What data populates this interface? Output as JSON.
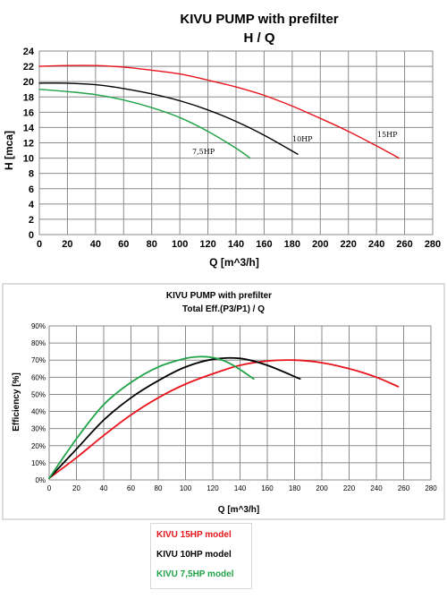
{
  "chart_data": [
    {
      "type": "line",
      "title": "KIVU PUMP with prefilter",
      "subtitle": "H  /  Q",
      "xlabel": "Q [m^3/h]",
      "ylabel": "H [mca]",
      "xlim": [
        0,
        280
      ],
      "ylim": [
        0,
        24
      ],
      "x_ticks": [
        "0",
        "20",
        "40",
        "60",
        "80",
        "100",
        "120",
        "140",
        "160",
        "180",
        "200",
        "220",
        "240",
        "260",
        "280"
      ],
      "y_ticks": [
        "0",
        "2",
        "4",
        "6",
        "8",
        "10",
        "12",
        "14",
        "16",
        "18",
        "20",
        "22",
        "24"
      ],
      "grid": true,
      "series": [
        {
          "name": "15HP",
          "color": "#e8141b",
          "x": [
            0,
            20,
            40,
            60,
            80,
            100,
            120,
            140,
            160,
            180,
            200,
            220,
            240,
            256
          ],
          "y": [
            22.0,
            22.1,
            22.1,
            21.9,
            21.5,
            21.0,
            20.2,
            19.3,
            18.2,
            16.8,
            15.2,
            13.5,
            11.6,
            10.0
          ]
        },
        {
          "name": "10HP",
          "color": "#000000",
          "x": [
            0,
            20,
            40,
            60,
            80,
            100,
            120,
            140,
            160,
            184
          ],
          "y": [
            19.8,
            19.8,
            19.6,
            19.1,
            18.4,
            17.5,
            16.3,
            14.8,
            13.0,
            10.5
          ]
        },
        {
          "name": "7,5HP",
          "color": "#1fa346",
          "x": [
            0,
            20,
            40,
            60,
            80,
            100,
            120,
            140,
            150
          ],
          "y": [
            19.0,
            18.7,
            18.3,
            17.6,
            16.6,
            15.3,
            13.5,
            11.3,
            10.0
          ]
        }
      ]
    },
    {
      "type": "line",
      "title": "KIVU PUMP with prefilter",
      "subtitle": "Total Eff.(P3/P1)  /  Q",
      "xlabel": "Q [m^3/h]",
      "ylabel": "Efficiency [%]",
      "xlim": [
        0,
        280
      ],
      "ylim": [
        0,
        90
      ],
      "x_ticks": [
        "0",
        "20",
        "40",
        "60",
        "80",
        "100",
        "120",
        "140",
        "160",
        "180",
        "200",
        "220",
        "240",
        "260",
        "280"
      ],
      "y_ticks": [
        "0%",
        "10%",
        "20%",
        "30%",
        "40%",
        "50%",
        "60%",
        "70%",
        "80%",
        "90%"
      ],
      "grid": true,
      "series": [
        {
          "name": "KIVU 15HP model",
          "color": "#e8141b",
          "x": [
            0,
            20,
            40,
            60,
            80,
            100,
            120,
            140,
            160,
            180,
            200,
            220,
            240,
            256
          ],
          "y": [
            1,
            13,
            26,
            38,
            48,
            56,
            62,
            67,
            69.5,
            70,
            68.5,
            65,
            60,
            54.5
          ]
        },
        {
          "name": "KIVU 10HP model",
          "color": "#000000",
          "x": [
            0,
            20,
            40,
            60,
            80,
            100,
            120,
            140,
            160,
            184
          ],
          "y": [
            1,
            18,
            35,
            48,
            58,
            66,
            70.5,
            71,
            67,
            59
          ]
        },
        {
          "name": "KIVU 7,5HP model",
          "color": "#1fa346",
          "x": [
            0,
            20,
            40,
            60,
            80,
            100,
            110,
            120,
            130,
            140,
            150
          ],
          "y": [
            1,
            24,
            44,
            57,
            66,
            71,
            72,
            71.5,
            69,
            64.5,
            59
          ]
        }
      ],
      "legend": {
        "placement": "bottom"
      }
    }
  ]
}
